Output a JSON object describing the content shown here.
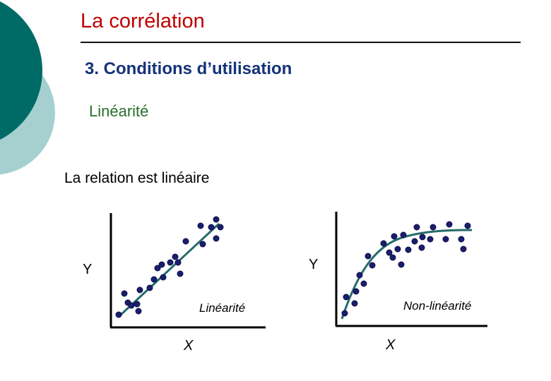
{
  "slide": {
    "title": "La corrélation",
    "section": "3. Conditions d’utilisation",
    "subsection": "Linéarité",
    "body": "La relation est linéaire"
  },
  "colors": {
    "deco_dark": "#006b66",
    "deco_light": "#a6d0d0",
    "points": "#1b1e6e",
    "fit_line": "#256b6b",
    "title": "#c00000"
  },
  "left_plot": {
    "x_label": "X",
    "y_label": "Y",
    "caption": "Linéarité"
  },
  "right_plot": {
    "x_label": "X",
    "y_label": "Y",
    "caption": "Non-linéarité"
  }
}
